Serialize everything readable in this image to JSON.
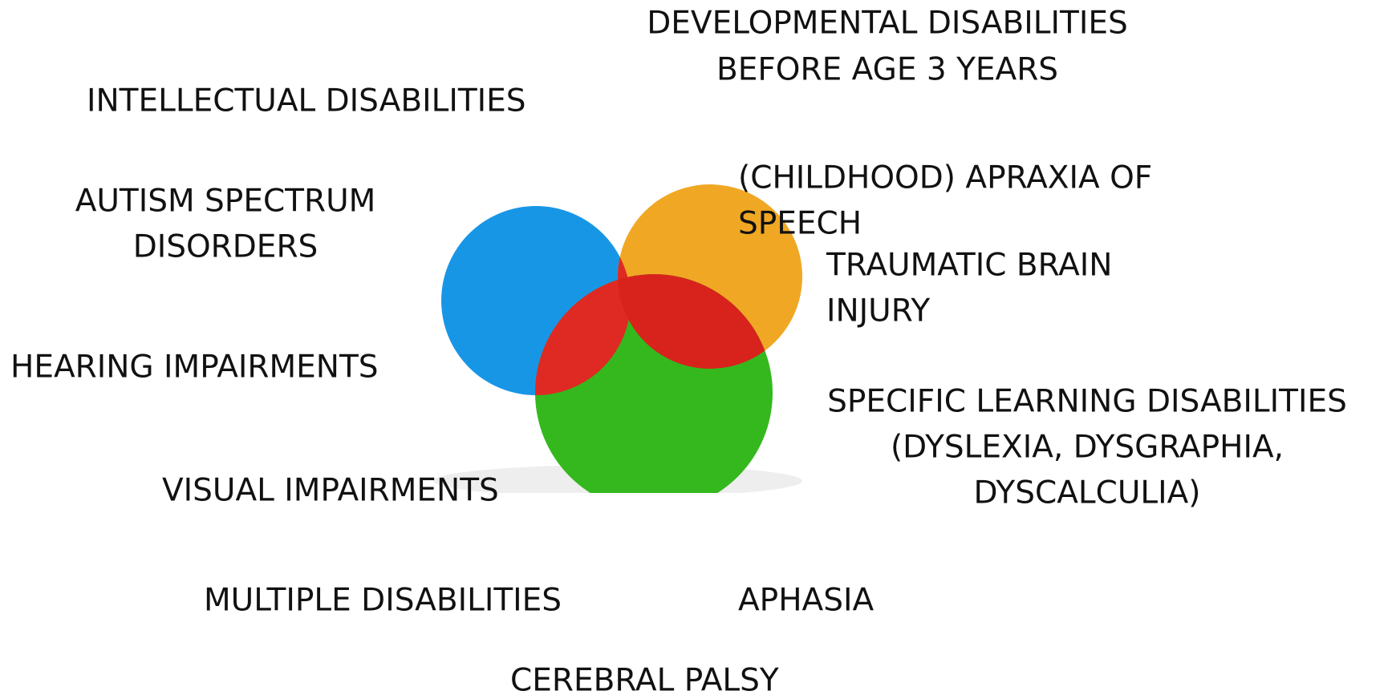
{
  "labels": [
    {
      "lines": [
        "DEVELOPMENTAL DISABILITIES",
        "BEFORE AGE 3 YEARS"
      ]
    },
    {
      "lines": [
        "INTELLECTUAL DISABILITIES"
      ]
    },
    {
      "lines": [
        "AUTISM  SPECTRUM",
        "DISORDERS"
      ]
    },
    {
      "lines": [
        "(CHILDHOOD) APRAXIA OF",
        "SPEECH"
      ]
    },
    {
      "lines": [
        "TRAUMATIC BRAIN",
        "INJURY"
      ]
    },
    {
      "lines": [
        "HEARING IMPAIRMENTS"
      ]
    },
    {
      "lines": [
        "SPECIFIC LEARNING DISABILITIES",
        "(DYSLEXIA, DYSGRAPHIA,",
        "DYSCALCULIA)"
      ]
    },
    {
      "lines": [
        "VISUAL IMPAIRMENTS"
      ]
    },
    {
      "lines": [
        "MULTIPLE DISABILITIES"
      ]
    },
    {
      "lines": [
        "APHASIA"
      ]
    },
    {
      "lines": [
        "CEREBRAL PALSY"
      ]
    }
  ]
}
